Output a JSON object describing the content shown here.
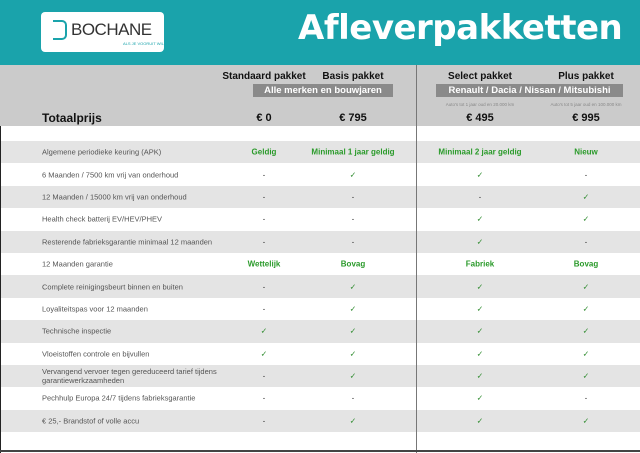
{
  "header": {
    "brand": "BOCHANE",
    "tagline": "ALS JE VOORUIT WIL",
    "title": "Afleverpakketten"
  },
  "packages": [
    {
      "name": "Standaard pakket",
      "price": "€ 0"
    },
    {
      "name": "Basis pakket",
      "price": "€ 795"
    },
    {
      "name": "Select pakket",
      "price": "€ 495",
      "note": "Auto's tot 1 jaar oud en 20.000 km"
    },
    {
      "name": "Plus pakket",
      "price": "€ 995",
      "note": "Auto's tot 5 jaar oud en 100.000 km"
    }
  ],
  "bands": {
    "left": "Alle merken en bouwjaren",
    "right": "Renault / Dacia / Nissan / Mitsubishi"
  },
  "total_label": "Totaalprijs",
  "accent": "#1aa3ab",
  "check": "✓",
  "dash": "-",
  "rows": [
    {
      "label": "Algemene periodieke keuring (APK)",
      "values": [
        "Geldig",
        "Minimaal 1 jaar geldig",
        "Minimaal 2 jaar geldig",
        "Nieuw"
      ]
    },
    {
      "label": "6 Maanden / 7500 km vrij van onderhoud",
      "values": [
        "-",
        "✓",
        "✓",
        "-"
      ]
    },
    {
      "label": "12 Maanden / 15000 km vrij van onderhoud",
      "values": [
        "-",
        "-",
        "-",
        "✓"
      ]
    },
    {
      "label": "Health check batterij EV/HEV/PHEV",
      "values": [
        "-",
        "-",
        "✓",
        "✓"
      ]
    },
    {
      "label": "Resterende fabrieksgarantie minimaal 12 maanden",
      "values": [
        "-",
        "-",
        "✓",
        "-"
      ]
    },
    {
      "label": "12 Maanden  garantie",
      "values": [
        "Wettelijk",
        "Bovag",
        "Fabriek",
        "Bovag"
      ]
    },
    {
      "label": "Complete reinigingsbeurt binnen en buiten",
      "values": [
        "-",
        "✓",
        "✓",
        "✓"
      ]
    },
    {
      "label": "Loyaliteitspas voor 12 maanden",
      "values": [
        "-",
        "✓",
        "✓",
        "✓"
      ]
    },
    {
      "label": "Technische inspectie",
      "values": [
        "✓",
        "✓",
        "✓",
        "✓"
      ]
    },
    {
      "label": "Vloeistoffen controle en bijvullen",
      "values": [
        "✓",
        "✓",
        "✓",
        "✓"
      ]
    },
    {
      "label": "Vervangend vervoer tegen gereduceerd tarief tijdens garantiewerkzaamheden",
      "values": [
        "-",
        "✓",
        "✓",
        "✓"
      ]
    },
    {
      "label": "Pechhulp Europa 24/7 tijdens fabrieksgarantie",
      "values": [
        "-",
        "-",
        "✓",
        "-"
      ]
    },
    {
      "label": "€ 25,- Brandstof of  volle accu",
      "values": [
        "-",
        "✓",
        "✓",
        "✓"
      ]
    }
  ]
}
